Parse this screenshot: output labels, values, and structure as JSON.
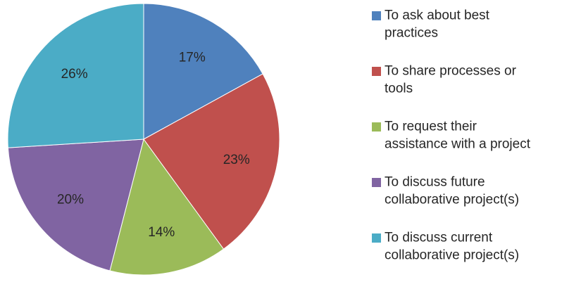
{
  "chart_data": {
    "type": "pie",
    "title": "",
    "slices": [
      {
        "label": "To ask about best practices",
        "value": 17,
        "display": "17%",
        "color": "#4F81BD"
      },
      {
        "label": "To share processes or tools",
        "value": 23,
        "display": "23%",
        "color": "#C0504D"
      },
      {
        "label": "To request their assistance with a project",
        "value": 14,
        "display": "14%",
        "color": "#9BBB59"
      },
      {
        "label": "To discuss future collaborative project(s)",
        "value": 20,
        "display": "20%",
        "color": "#8064A2"
      },
      {
        "label": "To discuss current collaborative project(s)",
        "value": 26,
        "display": "26%",
        "color": "#4BACC6"
      }
    ],
    "legend": {
      "placement": "right",
      "lines": [
        [
          "To ask about best",
          "practices"
        ],
        [
          "To share processes or",
          "tools"
        ],
        [
          "To request their",
          "assistance with a project"
        ],
        [
          "To discuss future",
          "collaborative project(s)"
        ],
        [
          "To discuss current",
          "collaborative project(s)"
        ]
      ]
    }
  }
}
